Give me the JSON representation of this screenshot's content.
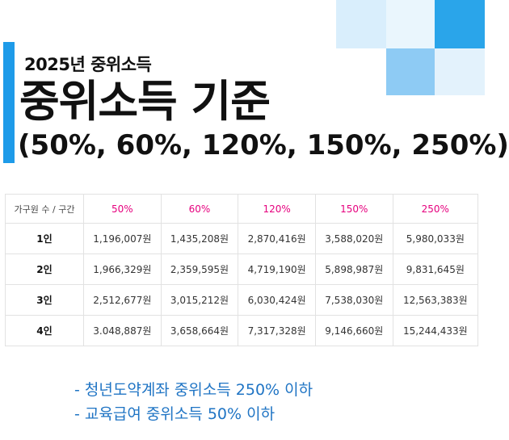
{
  "colors": {
    "accent_blue": "#1e9be9",
    "deco_light": "#d9eefc",
    "deco_mid": "#8ecbf4",
    "header_pink": "#e6007e",
    "note_blue": "#1f74c4"
  },
  "header": {
    "subtitle": "2025년 중위소득",
    "title": "중위소득 기준",
    "title_percents": "(50%, 60%, 120%, 150%, 250%)"
  },
  "table": {
    "corner_label": "가구원 수 / 구간",
    "columns": [
      "50%",
      "60%",
      "120%",
      "150%",
      "250%"
    ],
    "rows": [
      {
        "label": "1인",
        "values": [
          "1,196,007원",
          "1,435,208원",
          "2,870,416원",
          "3,588,020원",
          "5,980,033원"
        ]
      },
      {
        "label": "2인",
        "values": [
          "1,966,329원",
          "2,359,595원",
          "4,719,190원",
          "5,898,987원",
          "9,831,645원"
        ]
      },
      {
        "label": "3인",
        "values": [
          "2,512,677원",
          "3,015,212원",
          "6,030,424원",
          "7,538,030원",
          "12,563,383원"
        ]
      },
      {
        "label": "4인",
        "values": [
          "3.048,887원",
          "3,658,664원",
          "7,317,328원",
          "9,146,660원",
          "15,244,433원"
        ]
      }
    ]
  },
  "notes": [
    "- 청년도약계좌 중위소득 250% 이하",
    "- 교육급여 중위소득 50% 이하"
  ]
}
